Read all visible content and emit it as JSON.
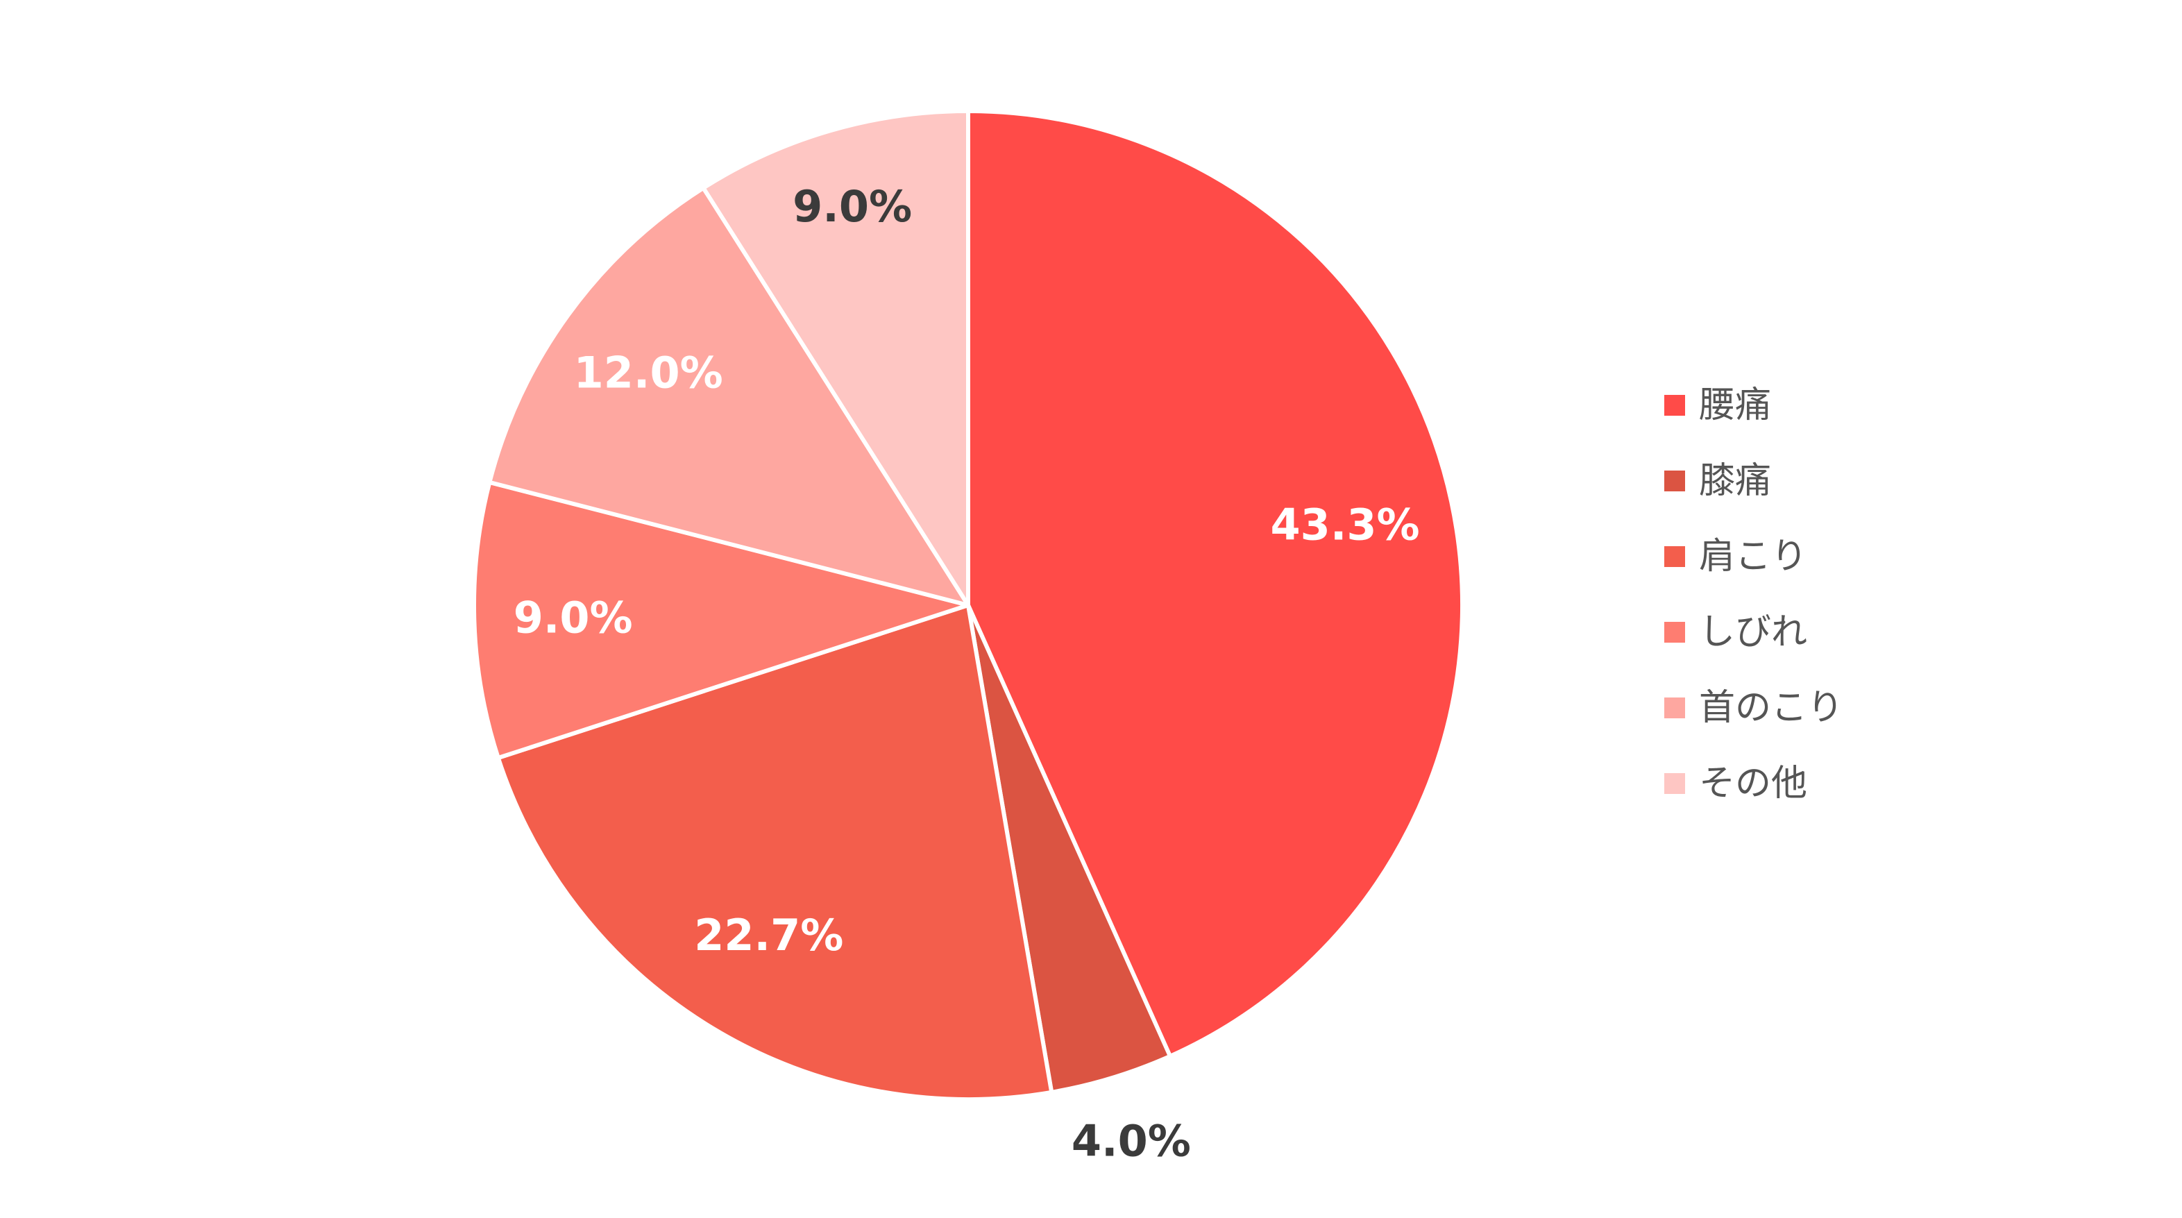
{
  "chart_data": {
    "type": "pie",
    "title": "",
    "start_angle_deg": 0,
    "direction": "clockwise",
    "legend_position": "right",
    "slices": [
      {
        "label": "腰痛",
        "value": 43.3,
        "display": "43.3%",
        "color": "#ff4b48",
        "label_color": "#ffffff"
      },
      {
        "label": "膝痛",
        "value": 4.0,
        "display": "4.0%",
        "color": "#db5442",
        "label_color": "#3b3b3b"
      },
      {
        "label": "肩こり",
        "value": 22.7,
        "display": "22.7%",
        "color": "#f35e4c",
        "label_color": "#ffffff"
      },
      {
        "label": "しびれ",
        "value": 9.0,
        "display": "9.0%",
        "color": "#fe7d71",
        "label_color": "#ffffff"
      },
      {
        "label": "首のこり",
        "value": 12.0,
        "display": "12.0%",
        "color": "#fea7a0",
        "label_color": "#ffffff"
      },
      {
        "label": "その他",
        "value": 9.0,
        "display": "9.0%",
        "color": "#fec6c3",
        "label_color": "#3b3b3b"
      }
    ]
  }
}
